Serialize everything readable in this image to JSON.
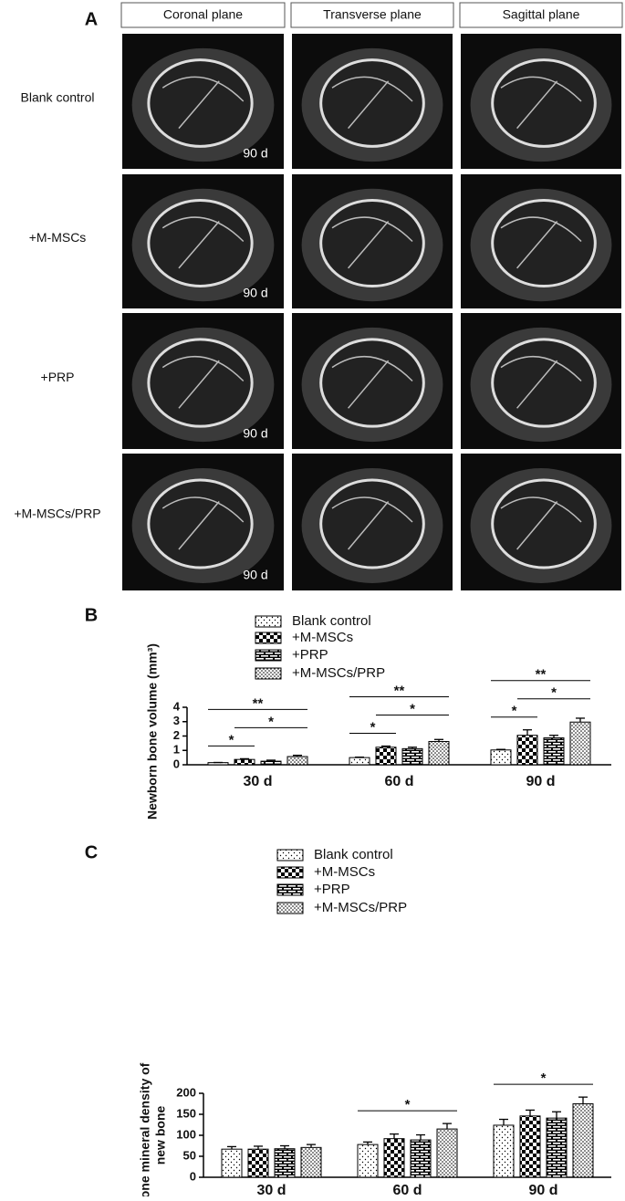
{
  "panel_a": {
    "label": "A",
    "columns": [
      "Coronal plane",
      "Transverse plane",
      "Sagittal plane"
    ],
    "rows": [
      "Blank control",
      "+M-MSCs",
      "+PRP",
      "+M-MSCs/PRP"
    ],
    "time_label": "90 d"
  },
  "chart_data": [
    {
      "type": "bar",
      "label": "B",
      "ylabel": "Newborn bone volume (mm³)",
      "categories": [
        "30 d",
        "60 d",
        "90 d"
      ],
      "series": [
        {
          "name": "Blank control",
          "pattern": "dots",
          "values": [
            0.15,
            0.5,
            1.03
          ],
          "errors": [
            0.01,
            0.03,
            0.04
          ]
        },
        {
          "name": "+M-MSCs",
          "pattern": "checker",
          "values": [
            0.37,
            1.22,
            2.05
          ],
          "errors": [
            0.05,
            0.08,
            0.38
          ]
        },
        {
          "name": "+PRP",
          "pattern": "brick",
          "values": [
            0.25,
            1.12,
            1.87
          ],
          "errors": [
            0.07,
            0.1,
            0.18
          ]
        },
        {
          "name": "+M-MSCs/PRP",
          "pattern": "dense",
          "values": [
            0.57,
            1.62,
            2.97
          ],
          "errors": [
            0.09,
            0.14,
            0.27
          ]
        }
      ],
      "ylim": [
        0,
        4
      ],
      "yticks": [
        0,
        1,
        2,
        3,
        4
      ],
      "significance": [
        {
          "category": 0,
          "from": 0,
          "to": 1,
          "label": "*"
        },
        {
          "category": 0,
          "from": 1,
          "to": 3,
          "label": "*"
        },
        {
          "category": 0,
          "from": 0,
          "to": 3,
          "label": "**"
        },
        {
          "category": 1,
          "from": 0,
          "to": 1,
          "label": "*"
        },
        {
          "category": 1,
          "from": 1,
          "to": 3,
          "label": "*"
        },
        {
          "category": 1,
          "from": 0,
          "to": 3,
          "label": "**"
        },
        {
          "category": 2,
          "from": 0,
          "to": 1,
          "label": "*"
        },
        {
          "category": 2,
          "from": 1,
          "to": 3,
          "label": "*"
        },
        {
          "category": 2,
          "from": 0,
          "to": 3,
          "label": "**"
        }
      ]
    },
    {
      "type": "bar",
      "label": "C",
      "ylabel": [
        "Bone mineral density of",
        "new bone"
      ],
      "categories": [
        "30 d",
        "60 d",
        "90 d"
      ],
      "series": [
        {
          "name": "Blank control",
          "pattern": "dots",
          "values": [
            67,
            78,
            124
          ],
          "errors": [
            6,
            6,
            14
          ]
        },
        {
          "name": "+M-MSCs",
          "pattern": "checker",
          "values": [
            67,
            92,
            146
          ],
          "errors": [
            7,
            11,
            14
          ]
        },
        {
          "name": "+PRP",
          "pattern": "brick",
          "values": [
            68,
            89,
            141
          ],
          "errors": [
            7,
            12,
            15
          ]
        },
        {
          "name": "+M-MSCs/PRP",
          "pattern": "dense",
          "values": [
            71,
            115,
            175
          ],
          "errors": [
            7,
            13,
            16
          ]
        }
      ],
      "ylim": [
        0,
        200
      ],
      "yticks": [
        0,
        50,
        100,
        150,
        200
      ],
      "significance": [
        {
          "category": 1,
          "from": 0,
          "to": 3,
          "label": "*"
        },
        {
          "category": 2,
          "from": 0,
          "to": 3,
          "label": "*"
        }
      ]
    }
  ]
}
